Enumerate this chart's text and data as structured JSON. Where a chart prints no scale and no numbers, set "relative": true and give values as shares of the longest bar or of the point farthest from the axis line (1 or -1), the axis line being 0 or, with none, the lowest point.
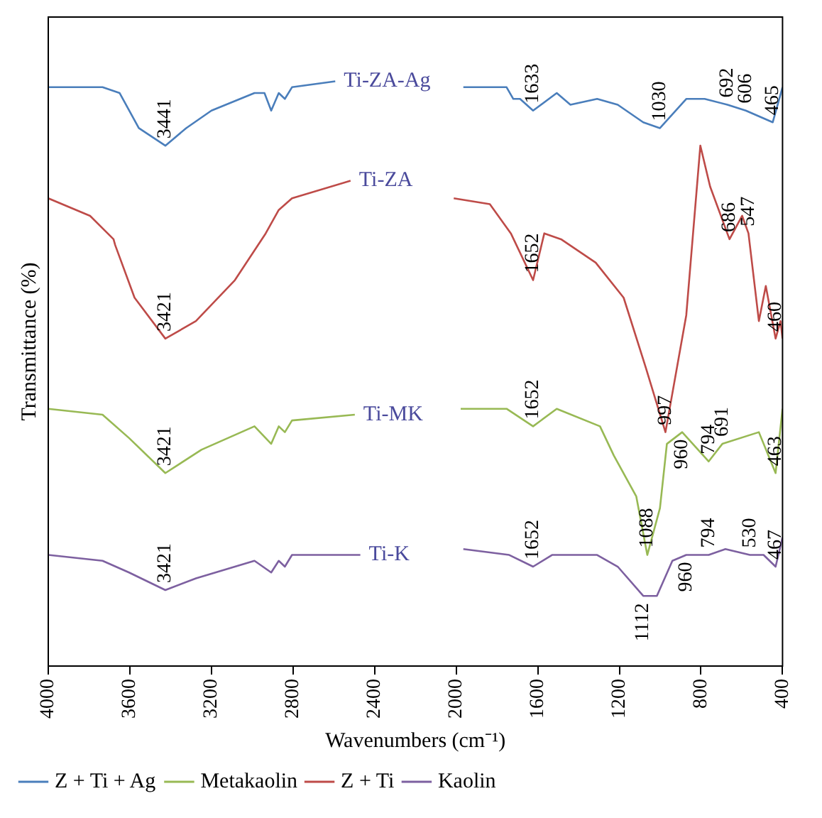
{
  "chart_data": {
    "type": "line",
    "xlabel": "Wavenumbers (cm⁻¹)",
    "ylabel": "Transmittance (%)",
    "relative": true,
    "xlim": [
      4000,
      400
    ],
    "xticks": [
      4000,
      3600,
      3200,
      2800,
      2400,
      2000,
      1600,
      1200,
      800,
      400
    ],
    "grid": false,
    "legend": "bottom",
    "series": [
      {
        "name": "Z + Ti + Ag",
        "color": "#4a7ebb",
        "x": [
          4000,
          3734,
          3650,
          3556,
          3426,
          3324,
          3200,
          2989,
          2940,
          2907,
          2870,
          2840,
          2805,
          2593,
          2300,
          1965,
          1753,
          1720,
          1687,
          1623,
          1507,
          1440,
          1309,
          1208,
          1083,
          1001,
          872,
          782,
          670,
          580,
          448,
          400
        ],
        "values": [
          0.99,
          0.99,
          0.98,
          0.92,
          0.89,
          0.92,
          0.95,
          0.98,
          0.98,
          0.95,
          0.98,
          0.97,
          0.99,
          1.0,
          null,
          0.99,
          0.99,
          0.97,
          0.97,
          0.95,
          0.98,
          0.96,
          0.97,
          0.96,
          0.93,
          0.92,
          0.97,
          0.97,
          0.96,
          0.95,
          0.93,
          0.99
        ]
      },
      {
        "name": "Z + Ti",
        "color": "#be4b48",
        "x": [
          4000,
          3795,
          3680,
          3672,
          3577,
          3426,
          3276,
          3085,
          2934,
          2870,
          2805,
          2518,
          2300,
          2012,
          1835,
          1732,
          1623,
          1568,
          1486,
          1316,
          1179,
          1070,
          974,
          872,
          803,
          755,
          660,
          598,
          567,
          516,
          482,
          434,
          410,
          400
        ],
        "values": [
          0.8,
          0.77,
          0.73,
          0.72,
          0.63,
          0.56,
          0.59,
          0.66,
          0.74,
          0.78,
          0.8,
          0.83,
          null,
          0.8,
          0.79,
          0.74,
          0.66,
          0.74,
          0.73,
          0.69,
          0.63,
          0.51,
          0.4,
          0.6,
          0.89,
          0.82,
          0.73,
          0.77,
          0.74,
          0.59,
          0.65,
          0.56,
          0.59,
          0.56
        ]
      },
      {
        "name": "Metakaolin",
        "color": "#98b954",
        "x": [
          4000,
          3734,
          3604,
          3426,
          3249,
          2989,
          2907,
          2870,
          2840,
          2805,
          2497,
          2300,
          1978,
          1753,
          1623,
          1507,
          1295,
          1227,
          1117,
          1063,
          1001,
          967,
          892,
          762,
          695,
          516,
          434,
          400
        ],
        "values": [
          0.44,
          0.43,
          0.39,
          0.33,
          0.37,
          0.41,
          0.38,
          0.41,
          0.4,
          0.42,
          0.43,
          null,
          0.44,
          0.44,
          0.41,
          0.44,
          0.41,
          0.36,
          0.29,
          0.19,
          0.27,
          0.38,
          0.4,
          0.35,
          0.38,
          0.4,
          0.33,
          0.44
        ]
      },
      {
        "name": "Kaolin",
        "color": "#7d60a0",
        "x": [
          4000,
          3734,
          3604,
          3426,
          3276,
          2989,
          2907,
          2870,
          2840,
          2805,
          2470,
          2300,
          1965,
          1740,
          1623,
          1530,
          1309,
          1208,
          1083,
          1016,
          940,
          872,
          762,
          680,
          560,
          493,
          434,
          400
        ],
        "values": [
          0.19,
          0.18,
          0.16,
          0.13,
          0.15,
          0.18,
          0.16,
          0.18,
          0.17,
          0.19,
          0.19,
          null,
          0.2,
          0.19,
          0.17,
          0.19,
          0.19,
          0.17,
          0.12,
          0.12,
          0.18,
          0.19,
          0.19,
          0.2,
          0.19,
          0.19,
          0.17,
          0.22
        ]
      }
    ],
    "annotations": [
      {
        "text": "Ti-ZA-Ag",
        "x": 2593,
        "y": 1.0
      },
      {
        "text": "3441",
        "x": 3426,
        "y": 0.89
      },
      {
        "text": "1633",
        "x": 1623,
        "y": 0.95
      },
      {
        "text": "1030",
        "x": 1001,
        "y": 0.92
      },
      {
        "text": "692",
        "x": 670,
        "y": 0.96
      },
      {
        "text": "606",
        "x": 580,
        "y": 0.95
      },
      {
        "text": "465",
        "x": 448,
        "y": 0.93
      },
      {
        "text": "Ti-ZA",
        "x": 2518,
        "y": 0.83
      },
      {
        "text": "3421",
        "x": 3426,
        "y": 0.56
      },
      {
        "text": "1652",
        "x": 1623,
        "y": 0.66
      },
      {
        "text": "997",
        "x": 974,
        "y": 0.4
      },
      {
        "text": "686",
        "x": 660,
        "y": 0.73
      },
      {
        "text": "547",
        "x": 567,
        "y": 0.74
      },
      {
        "text": "460",
        "x": 434,
        "y": 0.56
      },
      {
        "text": "Ti-MK",
        "x": 2497,
        "y": 0.43
      },
      {
        "text": "3421",
        "x": 3426,
        "y": 0.33
      },
      {
        "text": "1652",
        "x": 1623,
        "y": 0.41
      },
      {
        "text": "1088",
        "x": 1063,
        "y": 0.19
      },
      {
        "text": "960",
        "x": 892,
        "y": 0.4
      },
      {
        "text": "794",
        "x": 762,
        "y": 0.35
      },
      {
        "text": "691",
        "x": 695,
        "y": 0.38
      },
      {
        "text": "463",
        "x": 434,
        "y": 0.33
      },
      {
        "text": "Ti-K",
        "x": 2470,
        "y": 0.19
      },
      {
        "text": "3421",
        "x": 3426,
        "y": 0.13
      },
      {
        "text": "1652",
        "x": 1623,
        "y": 0.17
      },
      {
        "text": "1112",
        "x": 1083,
        "y": 0.12
      },
      {
        "text": "960",
        "x": 872,
        "y": 0.19
      },
      {
        "text": "794",
        "x": 762,
        "y": 0.19
      },
      {
        "text": "530",
        "x": 560,
        "y": 0.19
      },
      {
        "text": "467",
        "x": 434,
        "y": 0.17
      }
    ]
  }
}
